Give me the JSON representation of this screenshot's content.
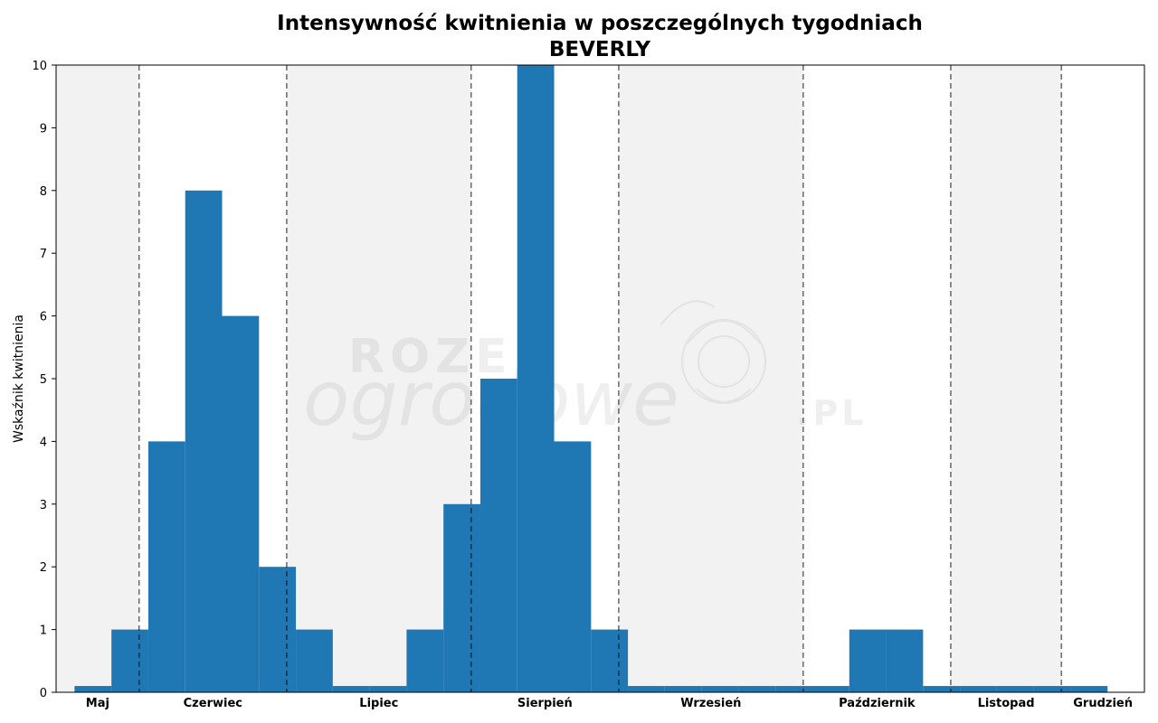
{
  "title_line1": "Intensywność kwitnienia w poszczególnych tygodniach",
  "title_line2": "BEVERLY",
  "chart_data": {
    "type": "bar",
    "title": "Intensywność kwitnienia w poszczególnych tygodniach BEVERLY",
    "ylabel": "Wskaźnik kwitnienia",
    "xlabel": "",
    "ylim": [
      0,
      10
    ],
    "yticks": [
      0,
      1,
      2,
      3,
      4,
      5,
      6,
      7,
      8,
      9,
      10
    ],
    "bar_color": "#1f77b4",
    "month_labels": [
      "Maj",
      "Czerwiec",
      "Lipiec",
      "Sierpień",
      "Wrzesień",
      "Październik",
      "Listopad",
      "Grudzień"
    ],
    "months": [
      {
        "label": "Maj",
        "start_week": 0,
        "end_week": 2.25,
        "shaded": true
      },
      {
        "label": "Czerwiec",
        "start_week": 2.25,
        "end_week": 6.25,
        "shaded": false
      },
      {
        "label": "Lipiec",
        "start_week": 6.25,
        "end_week": 11.25,
        "shaded": true
      },
      {
        "label": "Sierpień",
        "start_week": 11.25,
        "end_week": 15.25,
        "shaded": false
      },
      {
        "label": "Wrzesień",
        "start_week": 15.25,
        "end_week": 20.25,
        "shaded": true
      },
      {
        "label": "Październik",
        "start_week": 20.25,
        "end_week": 24.25,
        "shaded": false
      },
      {
        "label": "Listopad",
        "start_week": 24.25,
        "end_week": 27.25,
        "shaded": true
      },
      {
        "label": "Grudzień",
        "start_week": 27.25,
        "end_week": 29.5,
        "shaded": false
      }
    ],
    "weeks": [
      1,
      2,
      3,
      4,
      5,
      6,
      7,
      8,
      9,
      10,
      11,
      12,
      13,
      14,
      15,
      16,
      17,
      18,
      19,
      20,
      21,
      22,
      23,
      24,
      25,
      26,
      27,
      28
    ],
    "values": [
      0.1,
      1,
      4,
      8,
      6,
      2,
      1,
      0.1,
      0.1,
      1,
      3,
      5,
      10,
      4,
      1,
      0.1,
      0.1,
      0.1,
      0.1,
      0.1,
      0.1,
      1,
      1,
      0.1,
      0.1,
      0.1,
      0.1,
      0.1
    ],
    "grid": false,
    "watermark": "ROZE ogrodowe.PL"
  }
}
